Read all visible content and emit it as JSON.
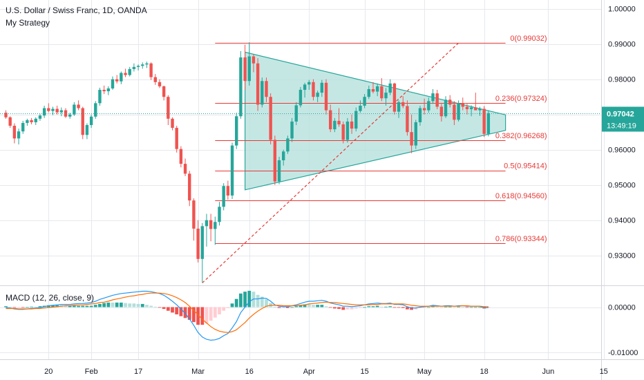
{
  "header": {
    "title": "U.S. Dollar / Swiss Franc, 1D, OANDA",
    "strategy": "My Strategy"
  },
  "colors": {
    "up": "#26a69a",
    "down": "#ef5350",
    "triangle_fill": "#b2dfdb",
    "triangle_edge": "#26a69a",
    "fib_line": "#e53935",
    "macd_line": "#2196f3",
    "signal_line": "#ff6d00",
    "price_badge": "#26a69a",
    "grid": "#e6e8ee",
    "axis_text": "#131722"
  },
  "price_badge": {
    "price": "0.97042",
    "countdown": "13:49:19"
  },
  "macd": {
    "label": "MACD (12, 26, close, 9)"
  },
  "chart_data": [
    {
      "type": "candlestick",
      "title": "U.S. Dollar / Swiss Franc, 1D, OANDA",
      "ylim": [
        0.9215,
        1.0025
      ],
      "yticks": [
        "1.00000",
        "0.99000",
        "0.98000",
        "0.97000",
        "0.96000",
        "0.95000",
        "0.94000",
        "0.93000"
      ],
      "ytick_values": [
        1.0,
        0.99,
        0.98,
        0.97,
        0.96,
        0.95,
        0.94,
        0.93
      ],
      "xticks": [
        "20",
        "Feb",
        "17",
        "Mar",
        "16",
        "Apr",
        "15",
        "May",
        "18",
        "Jun",
        "15"
      ],
      "xtick_index": [
        10,
        20,
        31,
        45,
        57,
        71,
        84,
        98,
        112,
        127,
        140
      ],
      "grid": true,
      "last_price": 0.97042,
      "candles": [
        [
          0.9705,
          0.9712,
          0.9688,
          0.9692
        ],
        [
          0.9692,
          0.9695,
          0.9662,
          0.9668
        ],
        [
          0.9668,
          0.9675,
          0.9618,
          0.9632
        ],
        [
          0.9632,
          0.966,
          0.9615,
          0.9652
        ],
        [
          0.9652,
          0.9682,
          0.9645,
          0.9676
        ],
        [
          0.9676,
          0.9688,
          0.9668,
          0.9684
        ],
        [
          0.9684,
          0.969,
          0.9672,
          0.9678
        ],
        [
          0.9678,
          0.9692,
          0.967,
          0.9688
        ],
        [
          0.9688,
          0.9702,
          0.9682,
          0.9697
        ],
        [
          0.9697,
          0.9725,
          0.969,
          0.9718
        ],
        [
          0.9718,
          0.9732,
          0.9706,
          0.971
        ],
        [
          0.971,
          0.9722,
          0.9698,
          0.9716
        ],
        [
          0.9716,
          0.9725,
          0.97,
          0.9706
        ],
        [
          0.9706,
          0.972,
          0.9695,
          0.9712
        ],
        [
          0.9712,
          0.9718,
          0.969,
          0.9694
        ],
        [
          0.9694,
          0.9705,
          0.9688,
          0.97
        ],
        [
          0.97,
          0.9735,
          0.9696,
          0.9728
        ],
        [
          0.9728,
          0.974,
          0.9712,
          0.9718
        ],
        [
          0.9718,
          0.9722,
          0.963,
          0.9642
        ],
        [
          0.9642,
          0.9675,
          0.963,
          0.967
        ],
        [
          0.967,
          0.97,
          0.9662,
          0.9694
        ],
        [
          0.9694,
          0.9738,
          0.9688,
          0.9732
        ],
        [
          0.9732,
          0.9776,
          0.9725,
          0.977
        ],
        [
          0.977,
          0.9782,
          0.9758,
          0.9766
        ],
        [
          0.9766,
          0.978,
          0.9755,
          0.9774
        ],
        [
          0.9774,
          0.9808,
          0.977,
          0.98
        ],
        [
          0.98,
          0.9812,
          0.9788,
          0.9794
        ],
        [
          0.9794,
          0.9822,
          0.9786,
          0.9818
        ],
        [
          0.9818,
          0.983,
          0.9806,
          0.9812
        ],
        [
          0.9812,
          0.9835,
          0.9808,
          0.9829
        ],
        [
          0.9829,
          0.9845,
          0.9822,
          0.9835
        ],
        [
          0.9835,
          0.9842,
          0.9825,
          0.9838
        ],
        [
          0.9838,
          0.9848,
          0.983,
          0.9842
        ],
        [
          0.9842,
          0.985,
          0.9832,
          0.9845
        ],
        [
          0.9845,
          0.9848,
          0.9798,
          0.9806
        ],
        [
          0.9806,
          0.9815,
          0.9784,
          0.9792
        ],
        [
          0.9792,
          0.98,
          0.9775,
          0.978
        ],
        [
          0.978,
          0.9782,
          0.974,
          0.975
        ],
        [
          0.975,
          0.9755,
          0.967,
          0.9688
        ],
        [
          0.9688,
          0.9692,
          0.9655,
          0.9662
        ],
        [
          0.9662,
          0.9668,
          0.9592,
          0.9602
        ],
        [
          0.9602,
          0.961,
          0.955,
          0.956
        ],
        [
          0.956,
          0.9575,
          0.9525,
          0.9532
        ],
        [
          0.9532,
          0.954,
          0.944,
          0.9456
        ],
        [
          0.9456,
          0.9462,
          0.9342,
          0.9376
        ],
        [
          0.9376,
          0.94,
          0.928,
          0.929
        ],
        [
          0.929,
          0.9392,
          0.9222,
          0.9383
        ],
        [
          0.9383,
          0.9418,
          0.9325,
          0.94
        ],
        [
          0.94,
          0.9418,
          0.934,
          0.9375
        ],
        [
          0.9375,
          0.941,
          0.933,
          0.9395
        ],
        [
          0.9395,
          0.9452,
          0.9385,
          0.9438
        ],
        [
          0.9438,
          0.9505,
          0.9428,
          0.9497
        ],
        [
          0.9497,
          0.9512,
          0.9458,
          0.947
        ],
        [
          0.947,
          0.962,
          0.946,
          0.9612
        ],
        [
          0.9612,
          0.9705,
          0.9602,
          0.9695
        ],
        [
          0.9695,
          0.988,
          0.9688,
          0.9862
        ],
        [
          0.9862,
          0.9898,
          0.977,
          0.9795
        ],
        [
          0.9795,
          0.9905,
          0.9782,
          0.9865
        ],
        [
          0.9865,
          0.987,
          0.982,
          0.9845
        ],
        [
          0.9845,
          0.986,
          0.971,
          0.9728
        ],
        [
          0.9728,
          0.9805,
          0.972,
          0.9795
        ],
        [
          0.9795,
          0.9805,
          0.9735,
          0.975
        ],
        [
          0.975,
          0.976,
          0.9615,
          0.9628
        ],
        [
          0.9628,
          0.964,
          0.95,
          0.951
        ],
        [
          0.951,
          0.958,
          0.9502,
          0.957
        ],
        [
          0.957,
          0.96,
          0.9555,
          0.9595
        ],
        [
          0.9595,
          0.964,
          0.9588,
          0.9632
        ],
        [
          0.9632,
          0.969,
          0.9622,
          0.968
        ],
        [
          0.968,
          0.9735,
          0.967,
          0.9726
        ],
        [
          0.9726,
          0.9778,
          0.972,
          0.977
        ],
        [
          0.977,
          0.979,
          0.9748,
          0.9785
        ],
        [
          0.9785,
          0.9798,
          0.977,
          0.9792
        ],
        [
          0.9792,
          0.98,
          0.974,
          0.975
        ],
        [
          0.975,
          0.9768,
          0.9735,
          0.9762
        ],
        [
          0.9762,
          0.9798,
          0.975,
          0.979
        ],
        [
          0.979,
          0.98,
          0.97,
          0.9712
        ],
        [
          0.9712,
          0.9728,
          0.965,
          0.9658
        ],
        [
          0.9658,
          0.969,
          0.965,
          0.9682
        ],
        [
          0.9682,
          0.9718,
          0.9665,
          0.9672
        ],
        [
          0.9672,
          0.968,
          0.9618,
          0.9628
        ],
        [
          0.9628,
          0.969,
          0.962,
          0.968
        ],
        [
          0.968,
          0.97,
          0.9645,
          0.966
        ],
        [
          0.966,
          0.972,
          0.9652,
          0.971
        ],
        [
          0.971,
          0.974,
          0.9705,
          0.9725
        ],
        [
          0.9725,
          0.9758,
          0.9718,
          0.975
        ],
        [
          0.975,
          0.9782,
          0.9744,
          0.9772
        ],
        [
          0.9772,
          0.9792,
          0.976,
          0.9765
        ],
        [
          0.9765,
          0.9788,
          0.9752,
          0.978
        ],
        [
          0.978,
          0.9803,
          0.9738,
          0.9746
        ],
        [
          0.9746,
          0.9775,
          0.9725,
          0.9762
        ],
        [
          0.9762,
          0.98,
          0.9755,
          0.9788
        ],
        [
          0.9788,
          0.979,
          0.97,
          0.9708
        ],
        [
          0.9708,
          0.974,
          0.969,
          0.9735
        ],
        [
          0.9735,
          0.9752,
          0.9718,
          0.9724
        ],
        [
          0.9724,
          0.974,
          0.964,
          0.965
        ],
        [
          0.965,
          0.97,
          0.959,
          0.9612
        ],
        [
          0.9612,
          0.9685,
          0.9602,
          0.9678
        ],
        [
          0.9678,
          0.9725,
          0.9668,
          0.9718
        ],
        [
          0.9718,
          0.9745,
          0.97,
          0.9712
        ],
        [
          0.9712,
          0.9748,
          0.9705,
          0.9738
        ],
        [
          0.9738,
          0.9772,
          0.973,
          0.976
        ],
        [
          0.976,
          0.977,
          0.9715,
          0.9722
        ],
        [
          0.9722,
          0.973,
          0.968,
          0.9695
        ],
        [
          0.9695,
          0.9752,
          0.969,
          0.9742
        ],
        [
          0.9742,
          0.9755,
          0.972,
          0.9728
        ],
        [
          0.9728,
          0.9738,
          0.967,
          0.9685
        ],
        [
          0.9685,
          0.974,
          0.968,
          0.9732
        ],
        [
          0.9732,
          0.9748,
          0.9712,
          0.9722
        ],
        [
          0.9722,
          0.973,
          0.97,
          0.9715
        ],
        [
          0.9715,
          0.9726,
          0.9695,
          0.972
        ],
        [
          0.972,
          0.9762,
          0.9712,
          0.9712
        ],
        [
          0.9712,
          0.9722,
          0.9696,
          0.9716
        ],
        [
          0.9716,
          0.9724,
          0.9636,
          0.9645
        ],
        [
          0.9645,
          0.9712,
          0.9638,
          0.9704
        ]
      ],
      "triangle": {
        "upper": [
          [
            56,
            0.9877
          ],
          [
            117,
            0.9699
          ]
        ],
        "lower": [
          [
            56,
            0.9486
          ],
          [
            117,
            0.9655
          ]
        ]
      },
      "fibonacci": [
        {
          "level": "0",
          "price": 0.99032,
          "label": "0(0.99032)"
        },
        {
          "level": "0.236",
          "price": 0.97324,
          "label": "0.236(0.97324)"
        },
        {
          "level": "0.382",
          "price": 0.96268,
          "label": "0.382(0.96268)"
        },
        {
          "level": "0.5",
          "price": 0.95414,
          "label": "0.5(0.95414)"
        },
        {
          "level": "0.618",
          "price": 0.9456,
          "label": "0.618(0.94560)"
        },
        {
          "level": "0.786",
          "price": 0.93344,
          "label": "0.786(0.93344)"
        }
      ],
      "fib_trend": [
        [
          46,
          0.9222
        ],
        [
          106,
          0.99032
        ]
      ]
    },
    {
      "type": "macd",
      "title": "MACD (12, 26, close, 9)",
      "ylim": [
        -0.0115,
        0.0048
      ],
      "yticks": [
        "0.00000",
        "-0.01000"
      ],
      "ytick_values": [
        0.0,
        -0.01
      ],
      "macd": [
        -0.0001,
        -0.0002,
        -0.0004,
        -0.0005,
        -0.0005,
        -0.0004,
        -0.0003,
        -0.0002,
        -0.0001,
        0.0001,
        0.0003,
        0.0004,
        0.0005,
        0.0006,
        0.0006,
        0.0006,
        0.0007,
        0.0008,
        0.0008,
        0.0009,
        0.001,
        0.0013,
        0.0017,
        0.002,
        0.0023,
        0.0026,
        0.0028,
        0.003,
        0.0031,
        0.0032,
        0.0033,
        0.0034,
        0.0035,
        0.0035,
        0.0034,
        0.0032,
        0.003,
        0.0026,
        0.002,
        0.0013,
        0.0005,
        -0.0004,
        -0.0014,
        -0.0026,
        -0.004,
        -0.0056,
        -0.0066,
        -0.0071,
        -0.0073,
        -0.0072,
        -0.0069,
        -0.0063,
        -0.0058,
        -0.0046,
        -0.0032,
        -0.0012,
        0.0,
        0.0012,
        0.0018,
        0.0018,
        0.002,
        0.0019,
        0.0013,
        0.0005,
        0.0002,
        0.0001,
        0.0001,
        0.0003,
        0.0005,
        0.0008,
        0.0011,
        0.0013,
        0.0013,
        0.0014,
        0.0015,
        0.0013,
        0.0009,
        0.0007,
        0.0005,
        0.0002,
        0.0002,
        0.0001,
        0.0002,
        0.0003,
        0.0005,
        0.0007,
        0.0008,
        0.0009,
        0.0008,
        0.0008,
        0.0009,
        0.0006,
        0.0006,
        0.0005,
        0.0001,
        -0.0002,
        -0.0002,
        0.0,
        0.0001,
        0.0002,
        0.0004,
        0.0003,
        0.0002,
        0.0003,
        0.0003,
        0.0002,
        0.0003,
        0.0003,
        0.0002,
        0.0002,
        0.0002,
        0.0002,
        -0.0002,
        -0.0001
      ],
      "signal": [
        -0.0003,
        -0.0003,
        -0.0003,
        -0.0004,
        -0.0004,
        -0.0004,
        -0.0004,
        -0.0003,
        -0.0003,
        -0.0002,
        -0.0001,
        0.0,
        0.0001,
        0.0002,
        0.0003,
        0.0003,
        0.0004,
        0.0005,
        0.0005,
        0.0006,
        0.0007,
        0.0008,
        0.001,
        0.0011,
        0.0013,
        0.0016,
        0.0018,
        0.002,
        0.0022,
        0.0024,
        0.0025,
        0.0027,
        0.0028,
        0.003,
        0.0031,
        0.0031,
        0.0031,
        0.003,
        0.0028,
        0.0025,
        0.0021,
        0.0016,
        0.001,
        0.0002,
        -0.0007,
        -0.0017,
        -0.0027,
        -0.0035,
        -0.0043,
        -0.0049,
        -0.0053,
        -0.0055,
        -0.0056,
        -0.0054,
        -0.005,
        -0.0042,
        -0.0034,
        -0.0024,
        -0.0016,
        -0.0009,
        -0.0003,
        0.0002,
        0.0004,
        0.0004,
        0.0004,
        0.0003,
        0.0003,
        0.0003,
        0.0003,
        0.0004,
        0.0005,
        0.0007,
        0.0008,
        0.0009,
        0.001,
        0.0011,
        0.001,
        0.001,
        0.0009,
        0.0008,
        0.0007,
        0.0006,
        0.0005,
        0.0005,
        0.0005,
        0.0005,
        0.0006,
        0.0006,
        0.0007,
        0.0007,
        0.0007,
        0.0007,
        0.0007,
        0.0007,
        0.0006,
        0.0004,
        0.0003,
        0.0002,
        0.0002,
        0.0002,
        0.0002,
        0.0002,
        0.0002,
        0.0002,
        0.0002,
        0.0002,
        0.0002,
        0.0003,
        0.0003,
        0.0002,
        0.0002,
        0.0002,
        0.0001,
        0.0001
      ]
    }
  ]
}
